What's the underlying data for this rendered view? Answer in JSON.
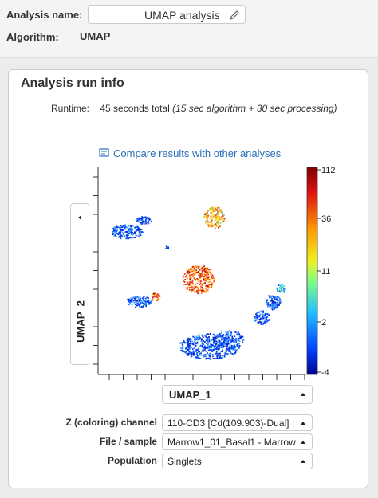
{
  "analysis_name": {
    "label": "Analysis name:",
    "value": "UMAP analysis"
  },
  "algorithm": {
    "label": "Algorithm:",
    "value": "UMAP"
  },
  "run_info": {
    "title": "Analysis run info",
    "runtime_label": "Runtime:",
    "runtime": "45 seconds total",
    "runtime_detail": "(15 sec algorithm + 30 sec processing)"
  },
  "compare_link": "Compare results with other analyses",
  "plot": {
    "y_axis": "UMAP_2",
    "x_axis": "UMAP_1",
    "colorbar_ticks": [
      "112",
      "36",
      "11",
      "2",
      "-4"
    ]
  },
  "controls": [
    {
      "label": "Z (coloring) channel",
      "value": "110-CD3 [Cd(109.903)-Dual]"
    },
    {
      "label": "File / sample",
      "value": "Marrow1_01_Basal1 - Marrow"
    },
    {
      "label": "Population",
      "value": "Singlets"
    }
  ]
}
